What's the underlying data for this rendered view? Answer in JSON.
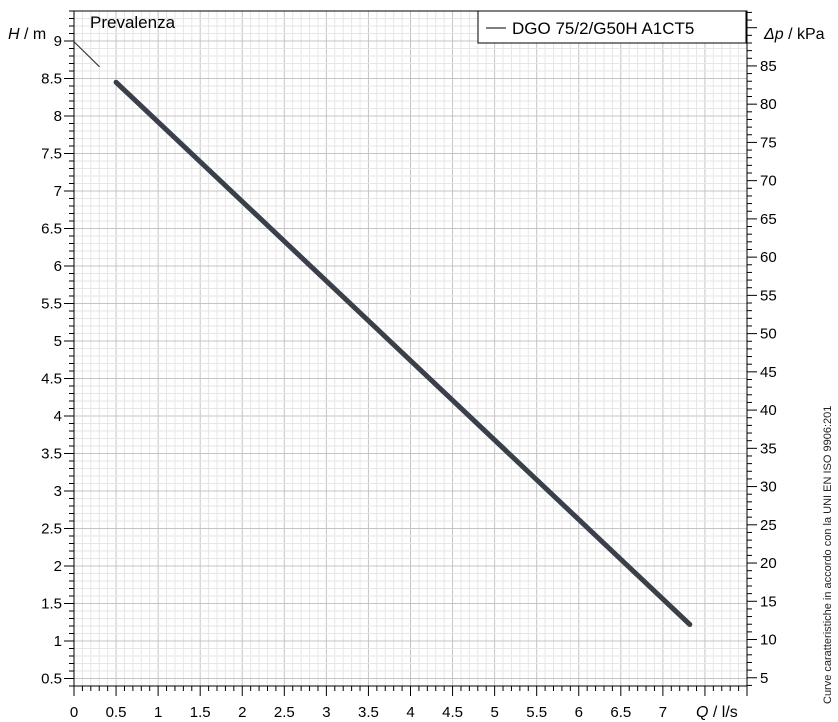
{
  "chart_data": {
    "type": "line",
    "title": "Prevalenza",
    "legend": {
      "placement": "top-right",
      "entries": [
        "DGO 75/2/G50H A1CT5"
      ]
    },
    "x_axis": {
      "label_var": "Q",
      "label_unit": " / l/s",
      "range": [
        0,
        8
      ],
      "ticks": [
        0,
        0.5,
        1,
        1.5,
        2,
        2.5,
        3,
        3.5,
        4,
        4.5,
        5,
        5.5,
        6,
        6.5,
        7
      ],
      "tick_labels": [
        "0",
        "0.5",
        "1",
        "1.5",
        "2",
        "2.5",
        "3",
        "3.5",
        "4",
        "4.5",
        "5",
        "5.5",
        "6",
        "6.5",
        "7"
      ]
    },
    "y_axis_left": {
      "label_var": "H",
      "label_unit": " / m",
      "range": [
        0.4,
        9.4
      ],
      "ticks": [
        0.5,
        1,
        1.5,
        2,
        2.5,
        3,
        3.5,
        4,
        4.5,
        5,
        5.5,
        6,
        6.5,
        7,
        7.5,
        8,
        8.5,
        9
      ],
      "tick_labels": [
        "0.5",
        "1",
        "1.5",
        "2",
        "2.5",
        "3",
        "3.5",
        "4",
        "4.5",
        "5",
        "5.5",
        "6",
        "6.5",
        "7",
        "7.5",
        "8",
        "8.5",
        "9"
      ]
    },
    "y_axis_right": {
      "label_var": "Δp",
      "label_unit": " / kPa",
      "ticks": [
        5,
        10,
        15,
        20,
        25,
        30,
        35,
        40,
        45,
        50,
        55,
        60,
        65,
        70,
        75,
        80,
        85
      ],
      "tick_labels": [
        "5",
        "10",
        "15",
        "20",
        "25",
        "30",
        "35",
        "40",
        "45",
        "50",
        "55",
        "60",
        "65",
        "70",
        "75",
        "80",
        "85"
      ]
    },
    "grid": true,
    "series": [
      {
        "name": "DGO 75/2/G50H A1CT5",
        "style": "thin-extrapolation",
        "color": "#333333",
        "x": [
          0,
          0.3
        ],
        "y": [
          8.99,
          8.66
        ]
      },
      {
        "name": "DGO 75/2/G50H A1CT5",
        "style": "thick-operating",
        "color": "#3a4049",
        "x": [
          0.5,
          7.32
        ],
        "y": [
          8.45,
          1.22
        ]
      }
    ],
    "side_note": "Curve caratteristiche in accordo con la UNI EN ISO 9906:201"
  }
}
